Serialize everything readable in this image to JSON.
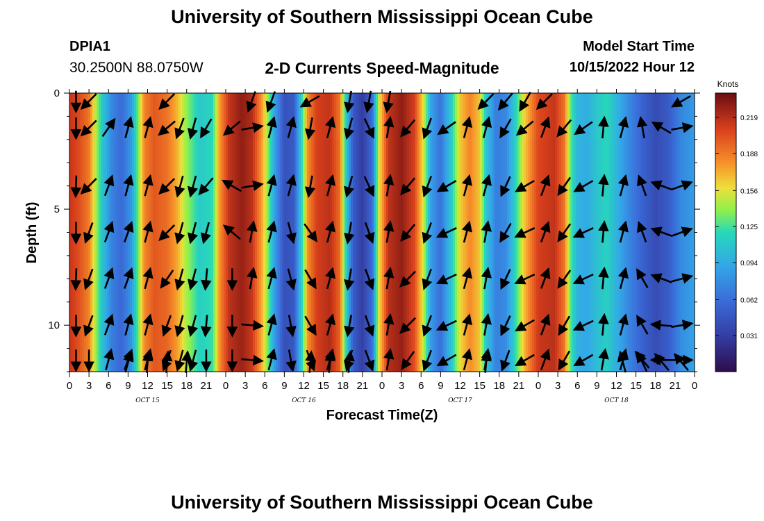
{
  "header": {
    "title": "University of Southern Mississippi Ocean Cube",
    "station_id": "DPIA1",
    "coordinates": "30.2500N  88.0750W",
    "plot_title": "2-D Currents Speed-Magnitude",
    "model_start_label": "Model Start Time",
    "model_start_value": "10/15/2022 Hour 12"
  },
  "footer": {
    "title": "University of Southern Mississippi Ocean Cube"
  },
  "chart_data": {
    "type": "heatmap",
    "title": "2-D Currents Speed-Magnitude",
    "xlabel": "Forecast Time(Z)",
    "ylabel": "Depth (ft)",
    "x_hours_range": [
      0,
      96
    ],
    "ylim": [
      0,
      12
    ],
    "y_ticks": [
      "0",
      "5",
      "10"
    ],
    "x_tick_labels": [
      "0",
      "3",
      "6",
      "9",
      "12",
      "15",
      "18",
      "21",
      "0",
      "3",
      "6",
      "9",
      "12",
      "15",
      "18",
      "21",
      "0",
      "3",
      "6",
      "9",
      "12",
      "15",
      "18",
      "21",
      "0",
      "3",
      "6",
      "9",
      "12",
      "15",
      "18",
      "21",
      "0"
    ],
    "day_labels": [
      {
        "label": "OCT 15",
        "hour": 12
      },
      {
        "label": "OCT 16",
        "hour": 36
      },
      {
        "label": "OCT 17",
        "hour": 60
      },
      {
        "label": "OCT 18",
        "hour": 84
      }
    ],
    "colorbar": {
      "unit": "Knots",
      "min": 0.0,
      "max": 0.24,
      "tick_labels": [
        "0.219",
        "0.188",
        "0.156",
        "0.125",
        "0.094",
        "0.062",
        "0.031"
      ],
      "tick_values": [
        0.219,
        0.188,
        0.156,
        0.125,
        0.094,
        0.062,
        0.031
      ]
    },
    "speed_by_hour": [
      {
        "hour": 0,
        "knots": 0.215
      },
      {
        "hour": 1.5,
        "knots": 0.205
      },
      {
        "hour": 3,
        "knots": 0.19
      },
      {
        "hour": 4,
        "knots": 0.15
      },
      {
        "hour": 5,
        "knots": 0.11
      },
      {
        "hour": 6.5,
        "knots": 0.075
      },
      {
        "hour": 8,
        "knots": 0.06
      },
      {
        "hour": 9.5,
        "knots": 0.085
      },
      {
        "hour": 10.5,
        "knots": 0.13
      },
      {
        "hour": 11.5,
        "knots": 0.185
      },
      {
        "hour": 13,
        "knots": 0.2
      },
      {
        "hour": 15,
        "knots": 0.19
      },
      {
        "hour": 16.5,
        "knots": 0.17
      },
      {
        "hour": 18,
        "knots": 0.14
      },
      {
        "hour": 20,
        "knots": 0.11
      },
      {
        "hour": 22,
        "knots": 0.12
      },
      {
        "hour": 23,
        "knots": 0.175
      },
      {
        "hour": 24.5,
        "knots": 0.215
      },
      {
        "hour": 26.5,
        "knots": 0.23
      },
      {
        "hour": 28,
        "knots": 0.22
      },
      {
        "hour": 29.5,
        "knots": 0.18
      },
      {
        "hour": 30.5,
        "knots": 0.14
      },
      {
        "hour": 31.5,
        "knots": 0.09
      },
      {
        "hour": 33,
        "knots": 0.045
      },
      {
        "hour": 34.5,
        "knots": 0.05
      },
      {
        "hour": 35.5,
        "knots": 0.11
      },
      {
        "hour": 36.5,
        "knots": 0.18
      },
      {
        "hour": 38,
        "knots": 0.21
      },
      {
        "hour": 40,
        "knots": 0.215
      },
      {
        "hour": 41.5,
        "knots": 0.19
      },
      {
        "hour": 42.5,
        "knots": 0.11
      },
      {
        "hour": 43.5,
        "knots": 0.05
      },
      {
        "hour": 45,
        "knots": 0.03
      },
      {
        "hour": 46.5,
        "knots": 0.06
      },
      {
        "hour": 47.5,
        "knots": 0.15
      },
      {
        "hour": 49,
        "knots": 0.215
      },
      {
        "hour": 51,
        "knots": 0.23
      },
      {
        "hour": 53,
        "knots": 0.21
      },
      {
        "hour": 54.5,
        "knots": 0.15
      },
      {
        "hour": 55.5,
        "knots": 0.09
      },
      {
        "hour": 57,
        "knots": 0.065
      },
      {
        "hour": 58.5,
        "knots": 0.11
      },
      {
        "hour": 60,
        "knots": 0.165
      },
      {
        "hour": 61.5,
        "knots": 0.185
      },
      {
        "hour": 63,
        "knots": 0.165
      },
      {
        "hour": 64,
        "knots": 0.11
      },
      {
        "hour": 65.5,
        "knots": 0.07
      },
      {
        "hour": 67,
        "knots": 0.075
      },
      {
        "hour": 68.5,
        "knots": 0.115
      },
      {
        "hour": 70,
        "knots": 0.165
      },
      {
        "hour": 72,
        "knots": 0.205
      },
      {
        "hour": 74.5,
        "knots": 0.215
      },
      {
        "hour": 76,
        "knots": 0.19
      },
      {
        "hour": 77,
        "knots": 0.13
      },
      {
        "hour": 78,
        "knots": 0.1
      },
      {
        "hour": 79.5,
        "knots": 0.095
      },
      {
        "hour": 81,
        "knots": 0.11
      },
      {
        "hour": 82.5,
        "knots": 0.12
      },
      {
        "hour": 84,
        "knots": 0.1
      },
      {
        "hour": 86,
        "knots": 0.075
      },
      {
        "hour": 88,
        "knots": 0.055
      },
      {
        "hour": 90,
        "knots": 0.04
      },
      {
        "hour": 92,
        "knots": 0.05
      },
      {
        "hour": 94,
        "knots": 0.075
      },
      {
        "hour": 96,
        "knots": 0.085
      }
    ],
    "depth_rows_ft": [
      0,
      2,
      4,
      6,
      8,
      10,
      12
    ],
    "current_vectors": [
      {
        "hour": 1,
        "dirs_deg": [
          180,
          182,
          180,
          182,
          180,
          180
        ]
      },
      {
        "hour": 3,
        "dirs_deg": [
          225,
          225,
          200,
          200,
          200,
          180
        ]
      },
      {
        "hour": 6,
        "dirs_deg": [
          35,
          20,
          20,
          20,
          20,
          15
        ]
      },
      {
        "hour": 9,
        "dirs_deg": [
          15,
          15,
          20,
          20,
          15,
          20
        ]
      },
      {
        "hour": 12,
        "dirs_deg": [
          15,
          15,
          15,
          15,
          15,
          15
        ]
      },
      {
        "hour": 15,
        "dirs_deg": [
          230,
          225,
          225,
          215,
          200,
          200
        ]
      },
      {
        "hour": 17,
        "dirs_deg": [
          200,
          195,
          195,
          195,
          195,
          195
        ]
      },
      {
        "hour": 19,
        "dirs_deg": [
          195,
          195,
          195,
          195,
          195,
          195
        ]
      },
      {
        "hour": 21,
        "dirs_deg": [
          210,
          220,
          195,
          185,
          185,
          180
        ]
      },
      {
        "hour": 25,
        "dirs_deg": [
          230,
          300,
          310,
          180,
          180,
          180
        ]
      },
      {
        "hour": 28,
        "dirs_deg": [
          80,
          80,
          10,
          10,
          95,
          95
        ]
      },
      {
        "hour": 31,
        "dirs_deg": [
          15,
          15,
          15,
          15,
          15,
          15
        ]
      },
      {
        "hour": 34,
        "dirs_deg": [
          15,
          15,
          165,
          165,
          170,
          170
        ]
      },
      {
        "hour": 37,
        "dirs_deg": [
          190,
          190,
          145,
          150,
          150,
          160
        ]
      },
      {
        "hour": 40,
        "dirs_deg": [
          15,
          15,
          15,
          15,
          15,
          15
        ]
      },
      {
        "hour": 43,
        "dirs_deg": [
          195,
          195,
          190,
          190,
          190,
          195
        ]
      },
      {
        "hour": 46,
        "dirs_deg": [
          155,
          155,
          160,
          160,
          160,
          160
        ]
      },
      {
        "hour": 49,
        "dirs_deg": [
          10,
          10,
          10,
          10,
          10,
          10
        ]
      },
      {
        "hour": 52,
        "dirs_deg": [
          220,
          220,
          220,
          225,
          225,
          215
        ]
      },
      {
        "hour": 55,
        "dirs_deg": [
          200,
          200,
          200,
          200,
          200,
          200
        ]
      },
      {
        "hour": 58,
        "dirs_deg": [
          235,
          240,
          245,
          245,
          245,
          240
        ]
      },
      {
        "hour": 61,
        "dirs_deg": [
          15,
          15,
          15,
          15,
          15,
          15
        ]
      },
      {
        "hour": 64,
        "dirs_deg": [
          15,
          15,
          10,
          10,
          10,
          10
        ]
      },
      {
        "hour": 67,
        "dirs_deg": [
          210,
          205,
          210,
          205,
          205,
          200
        ]
      },
      {
        "hour": 70,
        "dirs_deg": [
          230,
          240,
          245,
          245,
          240,
          240
        ]
      },
      {
        "hour": 73,
        "dirs_deg": [
          20,
          20,
          20,
          20,
          20,
          20
        ]
      },
      {
        "hour": 76,
        "dirs_deg": [
          220,
          215,
          215,
          215,
          210,
          210
        ]
      },
      {
        "hour": 79,
        "dirs_deg": [
          235,
          240,
          245,
          245,
          245,
          240
        ]
      },
      {
        "hour": 82,
        "dirs_deg": [
          5,
          5,
          5,
          5,
          5,
          10
        ]
      },
      {
        "hour": 85,
        "dirs_deg": [
          15,
          15,
          15,
          15,
          15,
          15
        ]
      },
      {
        "hour": 88,
        "dirs_deg": [
          350,
          340,
          340,
          330,
          330,
          320
        ]
      },
      {
        "hour": 91,
        "dirs_deg": [
          300,
          290,
          290,
          290,
          275,
          270
        ]
      },
      {
        "hour": 94,
        "dirs_deg": [
          80,
          70,
          70,
          75,
          80,
          90
        ]
      }
    ],
    "top_vectors": [
      {
        "hour": 1,
        "dir_deg": 180
      },
      {
        "hour": 3,
        "dir_deg": 225
      },
      {
        "hour": 15,
        "dir_deg": 225
      },
      {
        "hour": 28,
        "dir_deg": 200
      },
      {
        "hour": 31,
        "dir_deg": 200
      },
      {
        "hour": 37,
        "dir_deg": 240
      },
      {
        "hour": 43,
        "dir_deg": 190
      },
      {
        "hour": 46,
        "dir_deg": 190
      },
      {
        "hour": 49,
        "dir_deg": 190
      },
      {
        "hour": 64,
        "dir_deg": 225
      },
      {
        "hour": 67,
        "dir_deg": 220
      },
      {
        "hour": 70,
        "dir_deg": 210
      },
      {
        "hour": 73,
        "dir_deg": 225
      },
      {
        "hour": 94,
        "dir_deg": 240
      }
    ],
    "bottom_vectors": [
      {
        "hour": 9,
        "dir_deg": 15
      },
      {
        "hour": 12,
        "dir_deg": 5
      },
      {
        "hour": 15,
        "dir_deg": 5
      },
      {
        "hour": 18,
        "dir_deg": 5
      },
      {
        "hour": 37,
        "dir_deg": 5
      },
      {
        "hour": 40,
        "dir_deg": 5
      },
      {
        "hour": 43,
        "dir_deg": 5
      },
      {
        "hour": 64,
        "dir_deg": 5
      },
      {
        "hour": 85,
        "dir_deg": 345
      },
      {
        "hour": 88,
        "dir_deg": 335
      },
      {
        "hour": 91,
        "dir_deg": 320
      },
      {
        "hour": 94,
        "dir_deg": 320
      }
    ]
  }
}
